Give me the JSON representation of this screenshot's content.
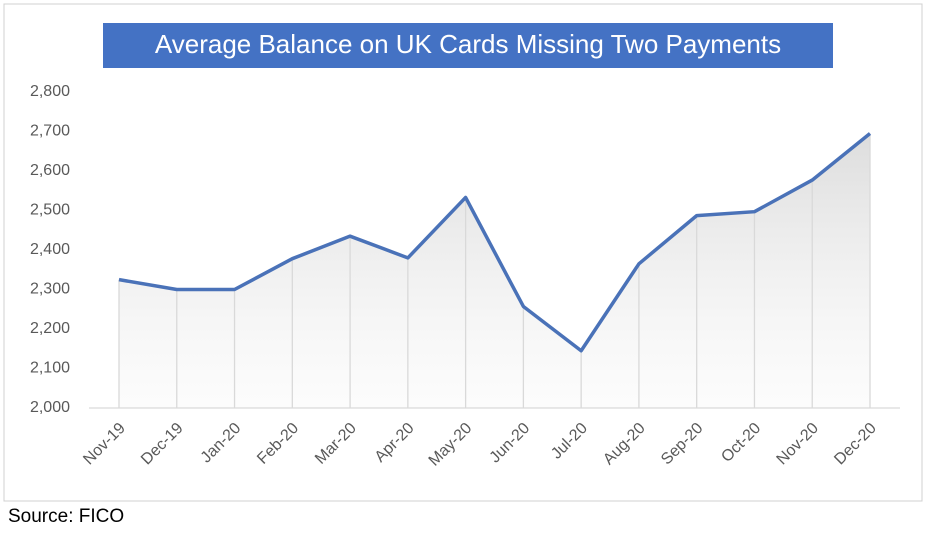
{
  "chart_data": {
    "type": "line",
    "title": "Average Balance on UK Cards Missing Two Payments",
    "source": "Source: FICO",
    "categories": [
      "Nov-19",
      "Dec-19",
      "Jan-20",
      "Feb-20",
      "Mar-20",
      "Apr-20",
      "May-20",
      "Jun-20",
      "Jul-20",
      "Aug-20",
      "Sep-20",
      "Oct-20",
      "Nov-20",
      "Dec-20"
    ],
    "values": [
      2325,
      2300,
      2300,
      2378,
      2435,
      2380,
      2533,
      2257,
      2145,
      2365,
      2487,
      2497,
      2577,
      2695
    ],
    "color": "#4a72b8",
    "ylim": [
      2000,
      2800
    ],
    "yticks": [
      {
        "value": 2000,
        "label": "2,000"
      },
      {
        "value": 2100,
        "label": "2,100"
      },
      {
        "value": 2200,
        "label": "2,200"
      },
      {
        "value": 2300,
        "label": "2,300"
      },
      {
        "value": 2400,
        "label": "2,400"
      },
      {
        "value": 2500,
        "label": "2,500"
      },
      {
        "value": 2600,
        "label": "2,600"
      },
      {
        "value": 2700,
        "label": "2,700"
      },
      {
        "value": 2800,
        "label": "2,800"
      }
    ],
    "drop_lines": true
  }
}
